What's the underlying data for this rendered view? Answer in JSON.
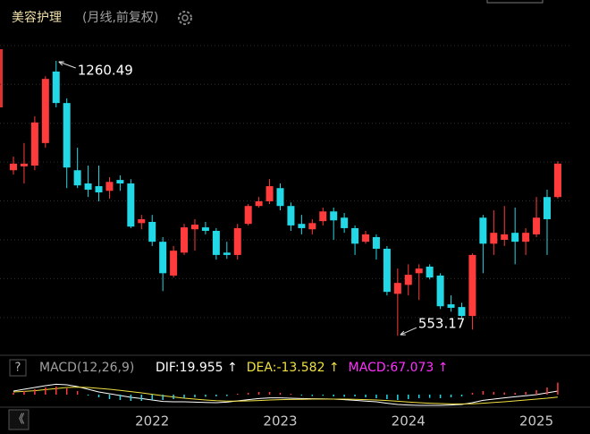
{
  "header": {
    "title": "美容护理",
    "subtitle": "(月线,前复权)"
  },
  "ui": {
    "help": "?",
    "collapse": "《"
  },
  "chart_data": [
    {
      "type": "candlestick",
      "categories": [
        null,
        null,
        null,
        null,
        null,
        null,
        null,
        null,
        null,
        null,
        null,
        null,
        null,
        "2022",
        null,
        null,
        null,
        null,
        null,
        null,
        null,
        null,
        null,
        null,
        null,
        "2023",
        null,
        null,
        null,
        null,
        null,
        null,
        null,
        null,
        null,
        null,
        null,
        "2024",
        null,
        null,
        null,
        null,
        null,
        null,
        null,
        null,
        null,
        null,
        null,
        "2025",
        null,
        null
      ],
      "open": [
        979,
        989,
        991,
        1049,
        1233,
        1152,
        979,
        945,
        938,
        926,
        954,
        945,
        843,
        846,
        795,
        708,
        767,
        827,
        832,
        823,
        767,
        761,
        841,
        887,
        899,
        933,
        887,
        841,
        827,
        848,
        873,
        857,
        830,
        795,
        807,
        777,
        661,
        684,
        714,
        731,
        708,
        634,
        627,
        604,
        857,
        790,
        800,
        818,
        795,
        814,
        910,
        910
      ],
      "high": [
        1014,
        1049,
        1118,
        1221,
        1260.49,
        1164,
        1037,
        991,
        991,
        961,
        966,
        956,
        864,
        864,
        807,
        784,
        841,
        853,
        846,
        830,
        795,
        841,
        892,
        910,
        956,
        945,
        896,
        864,
        853,
        883,
        883,
        869,
        837,
        823,
        814,
        784,
        726,
        737,
        737,
        737,
        714,
        657,
        638,
        765,
        864,
        876,
        887,
        883,
        830,
        910,
        929,
        1002
      ],
      "low": [
        968,
        945,
        979,
        1037,
        1141,
        933,
        933,
        910,
        899,
        906,
        926,
        830,
        827,
        784,
        668,
        703,
        761,
        772,
        814,
        749,
        751,
        749,
        837,
        883,
        892,
        876,
        823,
        814,
        814,
        837,
        800,
        818,
        761,
        790,
        749,
        657,
        553.17,
        657,
        645,
        698,
        622,
        615,
        599,
        569,
        714,
        761,
        784,
        737,
        761,
        807,
        761,
        906
      ],
      "close": [
        996,
        996,
        1102,
        1214,
        1152,
        986,
        940,
        929,
        922,
        949,
        945,
        834,
        853,
        795,
        714,
        772,
        832,
        839,
        823,
        761,
        761,
        830,
        887,
        899,
        938,
        887,
        837,
        830,
        843,
        873,
        850,
        830,
        790,
        814,
        777,
        666,
        689,
        710,
        726,
        703,
        629,
        625,
        604,
        761,
        790,
        818,
        814,
        795,
        818,
        857,
        853,
        996
      ],
      "up_color": "#ff3b3b",
      "down_color": "#22d8e6",
      "ylim": [
        519,
        1325
      ],
      "yticks": [
        1300,
        1200,
        1100,
        1000,
        900,
        800,
        700,
        600
      ],
      "grid": true
    },
    {
      "type": "macd",
      "title": "MACD(12,26,9)",
      "series": [
        {
          "name": "DIF:19.955 ↑",
          "color": "#ffffff",
          "values": [
            20,
            30,
            40,
            50,
            58,
            55,
            45,
            30,
            15,
            5,
            -5,
            -15,
            -22,
            -30,
            -38,
            -40,
            -40,
            -42,
            -44,
            -45,
            -42,
            -35,
            -28,
            -22,
            -18,
            -18,
            -20,
            -22,
            -23,
            -24,
            -25,
            -28,
            -32,
            -36,
            -40,
            -48,
            -55,
            -58,
            -60,
            -60,
            -60,
            -58,
            -55,
            -45,
            -32,
            -25,
            -18,
            -12,
            -6,
            0,
            10,
            19.955
          ]
        },
        {
          "name": "DEA:-13.582 ↑",
          "color": "#f0e040",
          "values": [
            15,
            18,
            22,
            28,
            34,
            40,
            42,
            40,
            35,
            30,
            24,
            17,
            10,
            2,
            -6,
            -13,
            -20,
            -25,
            -30,
            -34,
            -36,
            -36,
            -35,
            -33,
            -30,
            -28,
            -27,
            -26,
            -25,
            -25,
            -25,
            -25,
            -26,
            -28,
            -30,
            -33,
            -37,
            -41,
            -45,
            -48,
            -50,
            -52,
            -52,
            -51,
            -48,
            -44,
            -40,
            -35,
            -30,
            -25,
            -20,
            -13.582
          ]
        },
        {
          "name": "MACD:67.073 ↑",
          "color": "#ff30ff",
          "up_color": "#ff3b3b",
          "down_color": "#22d8e6",
          "values": [
            10,
            20,
            30,
            40,
            45,
            35,
            20,
            -5,
            -15,
            -25,
            -30,
            -35,
            -35,
            -30,
            -30,
            -25,
            -20,
            -15,
            -12,
            -10,
            -8,
            5,
            10,
            15,
            15,
            10,
            5,
            -5,
            -8,
            -6,
            -10,
            -12,
            -10,
            -15,
            -20,
            -25,
            -30,
            -25,
            -20,
            -18,
            -20,
            -15,
            -10,
            10,
            20,
            15,
            12,
            10,
            15,
            25,
            40,
            67.073
          ]
        }
      ],
      "ylim": [
        -70,
        80
      ]
    }
  ]
}
